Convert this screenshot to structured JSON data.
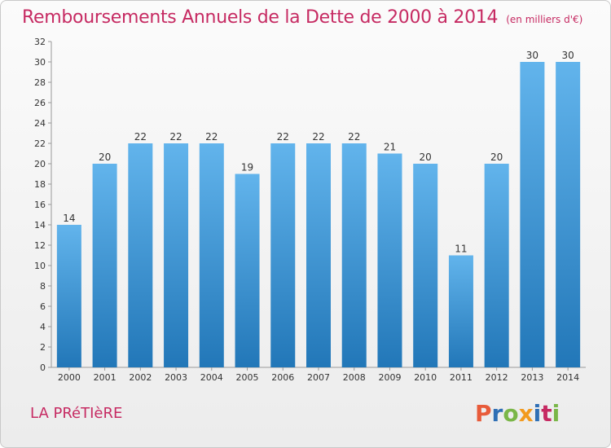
{
  "header": {
    "title": "Remboursements Annuels de la Dette de 2000 à 2014",
    "subtitle": "(en milliers d'€)"
  },
  "footer": {
    "town": "LA PRéTIèRE",
    "logo": {
      "text": "Proxiti",
      "colors": [
        "#e85b3a",
        "#2f6fb5",
        "#7ab648",
        "#f29a1f",
        "#2f6fb5",
        "#c62a62",
        "#7ab648"
      ]
    }
  },
  "colors": {
    "title": "#c62a62",
    "bar_light": "#62b4ec",
    "bar_dark": "#2277b8"
  },
  "chart_data": {
    "type": "bar",
    "categories": [
      "2000",
      "2001",
      "2002",
      "2003",
      "2004",
      "2005",
      "2006",
      "2007",
      "2008",
      "2009",
      "2010",
      "2011",
      "2012",
      "2013",
      "2014"
    ],
    "values": [
      14,
      20,
      22,
      22,
      22,
      19,
      22,
      22,
      22,
      21,
      20,
      11,
      20,
      30,
      30
    ],
    "ylim": [
      0,
      32
    ],
    "yticks": [
      0,
      2,
      4,
      6,
      8,
      10,
      12,
      14,
      16,
      18,
      20,
      22,
      24,
      26,
      28,
      30,
      32
    ],
    "grid": false,
    "title": "Remboursements Annuels de la Dette de 2000 à 2014",
    "xlabel": "",
    "ylabel": ""
  }
}
